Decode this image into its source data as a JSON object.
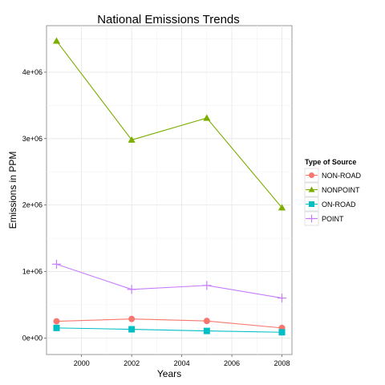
{
  "chart_data": {
    "type": "line",
    "title": "National Emissions Trends",
    "xlabel": "Years",
    "ylabel": "Emissions in PPM",
    "x": [
      1999,
      2002,
      2005,
      2008
    ],
    "xlim": [
      1998.6,
      2008.4
    ],
    "ylim": [
      -250000,
      4700000
    ],
    "xticks": [
      2000,
      2002,
      2004,
      2006,
      2008
    ],
    "xtick_labels": [
      "2000",
      "2002",
      "2004",
      "2006",
      "2008"
    ],
    "yticks": [
      0,
      1000000,
      2000000,
      3000000,
      4000000
    ],
    "ytick_labels": [
      "0e+00",
      "1e+06",
      "2e+06",
      "3e+06",
      "4e+06"
    ],
    "grid": true,
    "legend": {
      "title": "Type of Source",
      "position": "right"
    },
    "series": [
      {
        "name": "NON-ROAD",
        "values": [
          250000,
          285000,
          255000,
          150000
        ],
        "color": "#F8766D",
        "marker": "circle"
      },
      {
        "name": "NONPOINT",
        "values": [
          4470000,
          2980000,
          3310000,
          1960000
        ],
        "color": "#7CAE00",
        "marker": "triangle"
      },
      {
        "name": "ON-ROAD",
        "values": [
          150000,
          130000,
          105000,
          85000
        ],
        "color": "#00BFC4",
        "marker": "square"
      },
      {
        "name": "POINT",
        "values": [
          1110000,
          730000,
          790000,
          600000
        ],
        "color": "#C77CFF",
        "marker": "plus"
      }
    ]
  }
}
